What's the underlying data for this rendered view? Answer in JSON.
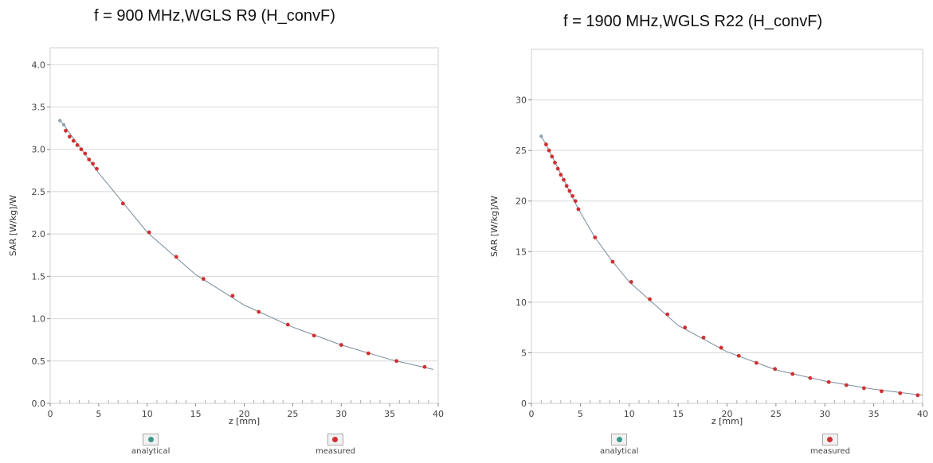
{
  "chart_data": [
    {
      "type": "line",
      "title": "f = 900 MHz,WGLS R9 (H_convF)",
      "xlabel": "z [mm]",
      "ylabel": "SAR [W/kg]/W",
      "xlim": [
        0,
        40
      ],
      "ylim": [
        0.0,
        4.2
      ],
      "x_ticks": [
        0,
        5,
        10,
        15,
        20,
        25,
        30,
        35,
        40
      ],
      "y_ticks": [
        "0.0",
        "0.5",
        "1.0",
        "1.5",
        "2.0",
        "2.5",
        "3.0",
        "3.5",
        "4.0"
      ],
      "grid": "horizontal",
      "series": [
        {
          "name": "analytical",
          "color": "#3a9a8a",
          "x": [
            1.0,
            1.4,
            5,
            10,
            15,
            20,
            25,
            30,
            35,
            39.5
          ],
          "y": [
            3.34,
            3.29,
            2.72,
            2.02,
            1.52,
            1.16,
            0.9,
            0.69,
            0.52,
            0.4
          ]
        },
        {
          "name": "measured",
          "color": "#d03030",
          "x": [
            1.6,
            2.0,
            2.4,
            2.8,
            3.2,
            3.6,
            4.0,
            4.4,
            4.8,
            7.5,
            10.2,
            13.0,
            15.8,
            18.8,
            21.5,
            24.5,
            27.2,
            30.0,
            32.8,
            35.7,
            38.6
          ],
          "y": [
            3.22,
            3.15,
            3.1,
            3.05,
            3.0,
            2.95,
            2.88,
            2.83,
            2.77,
            2.36,
            2.02,
            1.73,
            1.47,
            1.27,
            1.08,
            0.93,
            0.8,
            0.69,
            0.59,
            0.5,
            0.43
          ]
        }
      ],
      "legend": [
        "analytical",
        "measured"
      ],
      "legend_position": "bottom"
    },
    {
      "type": "line",
      "title": "f = 1900 MHz,WGLS R22 (H_convF)",
      "xlabel": "z [mm]",
      "ylabel": "SAR [W/kg]/W",
      "xlim": [
        0,
        40
      ],
      "ylim": [
        0,
        35
      ],
      "x_ticks": [
        0,
        5,
        10,
        15,
        20,
        25,
        30,
        35,
        40
      ],
      "y_ticks": [
        "0",
        "5",
        "10",
        "15",
        "20",
        "25",
        "30"
      ],
      "grid": "horizontal",
      "series": [
        {
          "name": "analytical",
          "color": "#3a9a8a",
          "x": [
            1.0,
            1.5,
            4.8,
            6.5,
            8.3,
            10.0,
            15,
            20,
            25,
            30,
            35,
            40
          ],
          "y": [
            26.4,
            25.6,
            19.2,
            16.4,
            14.0,
            12.0,
            7.7,
            5.1,
            3.3,
            2.2,
            1.4,
            0.8
          ]
        },
        {
          "name": "measured",
          "color": "#d03030",
          "x": [
            1.5,
            1.8,
            2.1,
            2.4,
            2.7,
            3.0,
            3.3,
            3.6,
            3.9,
            4.2,
            4.5,
            4.8,
            6.5,
            8.3,
            10.2,
            12.1,
            13.9,
            15.7,
            17.6,
            19.4,
            21.2,
            23.0,
            24.9,
            26.7,
            28.5,
            30.4,
            32.2,
            34.0,
            35.8,
            37.7,
            39.5
          ],
          "y": [
            25.6,
            25.0,
            24.4,
            23.8,
            23.2,
            22.6,
            22.1,
            21.5,
            21.0,
            20.5,
            20.0,
            19.2,
            16.4,
            14.0,
            12.0,
            10.3,
            8.8,
            7.5,
            6.5,
            5.5,
            4.7,
            4.0,
            3.4,
            2.9,
            2.5,
            2.1,
            1.8,
            1.5,
            1.2,
            1.0,
            0.8
          ]
        }
      ],
      "legend": [
        "analytical",
        "measured"
      ],
      "legend_position": "bottom"
    }
  ]
}
